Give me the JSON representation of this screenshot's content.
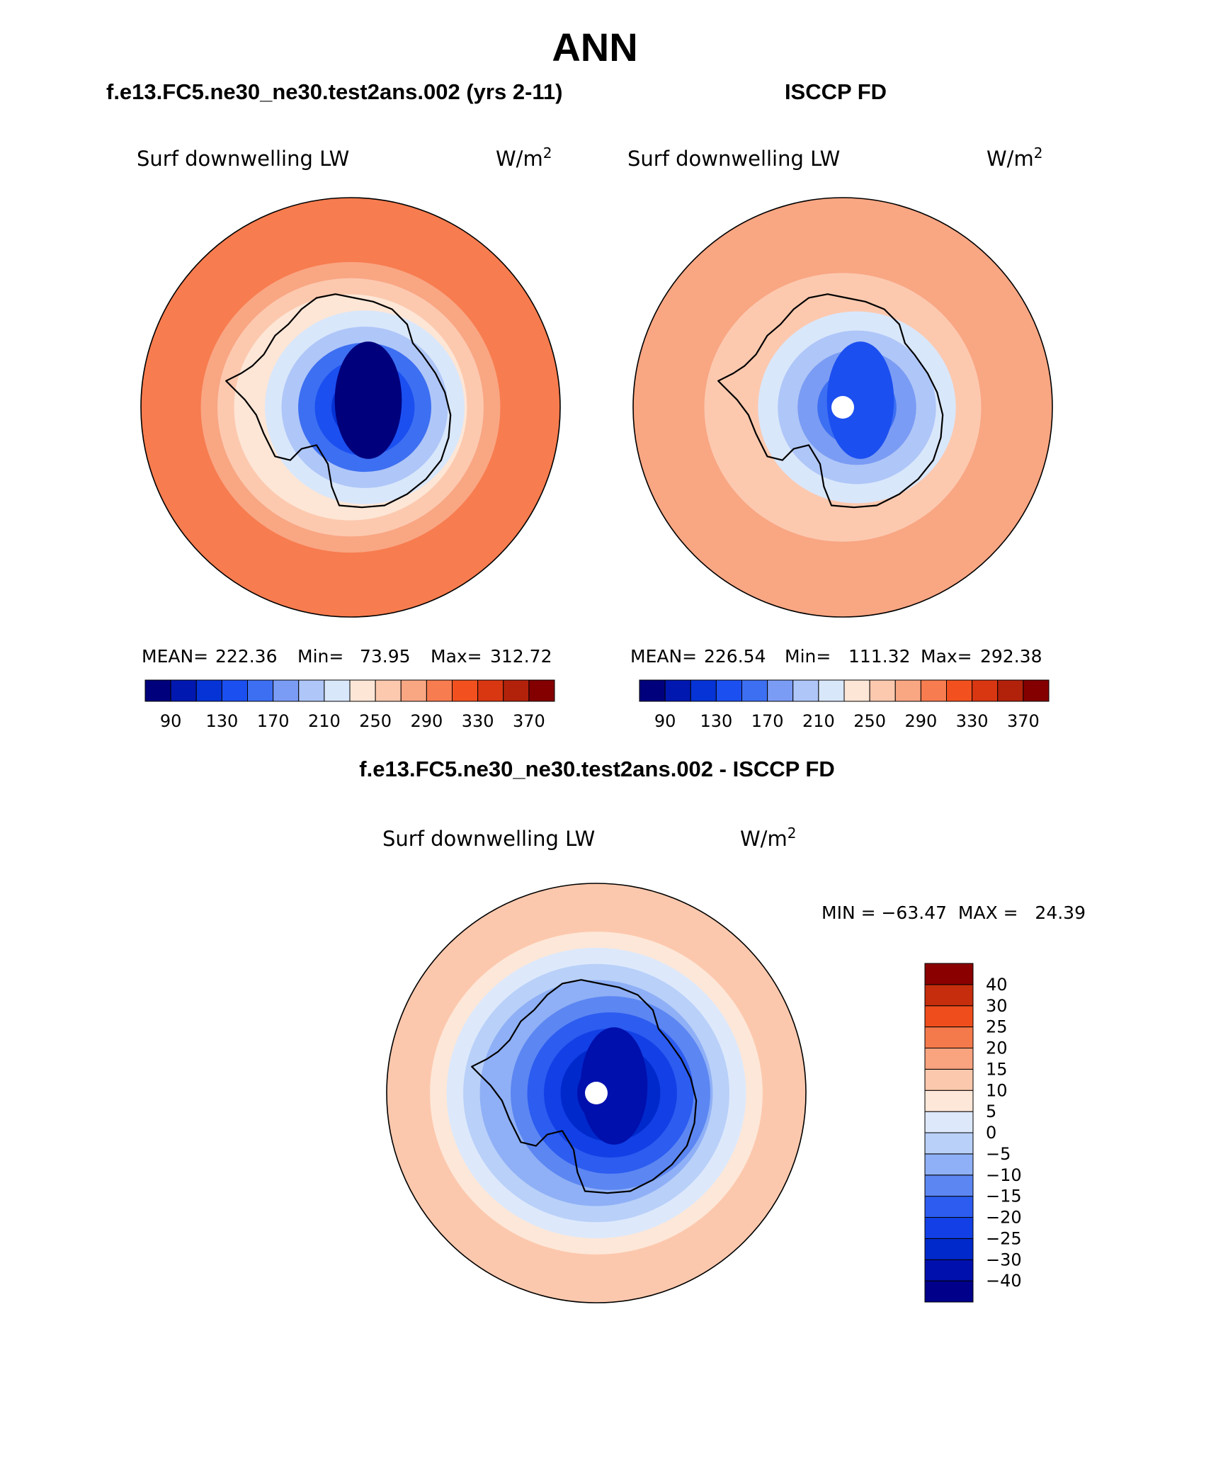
{
  "figure": {
    "title": "ANN",
    "panels": [
      {
        "id": "model",
        "title": "f.e13.FC5.ne30_ne30.test2ans.002 (yrs 2-11)",
        "variable": "Surf downwelling LW",
        "units": "W/m",
        "units_exp": "2",
        "stats": {
          "mean_label": "MEAN=",
          "mean": "222.36",
          "min_label": "Min=",
          "min": "73.95",
          "max_label": "Max=",
          "max": "312.72"
        },
        "center_value": 85,
        "ring_values": [
          85,
          110,
          140,
          160,
          190,
          215,
          240,
          265,
          275,
          290,
          300,
          305
        ],
        "pole_hole": false
      },
      {
        "id": "obs",
        "title": "ISCCP FD",
        "variable": "Surf downwelling LW",
        "units": "W/m",
        "units_exp": "2",
        "stats": {
          "mean_label": "MEAN=",
          "mean": "226.54",
          "min_label": "Min=",
          "min": "111.32",
          "max_label": "Max=",
          "max": "292.38"
        },
        "center_value": 130,
        "ring_values": [
          135,
          155,
          175,
          200,
          225,
          250,
          262,
          270,
          280,
          285
        ],
        "pole_hole": true
      },
      {
        "id": "diff",
        "title": "f.e13.FC5.ne30_ne30.test2ans.002 - ISCCP FD",
        "variable": "Surf downwelling LW",
        "units": "W/m",
        "units_exp": "2",
        "minmax": "MIN = −63.47  MAX =   24.39",
        "center_value": -35,
        "ring_values": [
          -42,
          -32,
          -27,
          -22,
          -17,
          -12,
          -7,
          -2,
          4,
          9,
          12,
          14
        ],
        "pole_hole": true
      }
    ],
    "abs_colorbar": {
      "levels": [
        90,
        110,
        130,
        150,
        170,
        190,
        210,
        230,
        250,
        270,
        290,
        310,
        330,
        350,
        370
      ],
      "tick_labels": [
        "90",
        "130",
        "170",
        "210",
        "250",
        "290",
        "330",
        "370"
      ],
      "colors": [
        "#00007d",
        "#0018b0",
        "#0533d6",
        "#1b4ff0",
        "#3d6ff2",
        "#7b9cf4",
        "#afc6f8",
        "#d9e7fb",
        "#fde6d6",
        "#fcc9af",
        "#f9a683",
        "#f77c4f",
        "#f2511f",
        "#d93712",
        "#b2220b",
        "#840000"
      ]
    },
    "diff_colorbar": {
      "levels": [
        -40,
        -30,
        -25,
        -20,
        -15,
        -10,
        -5,
        0,
        5,
        10,
        15,
        20,
        25,
        30,
        40
      ],
      "tick_labels": [
        "−40",
        "−30",
        "−25",
        "−20",
        "−15",
        "−10",
        "−5",
        "0",
        "5",
        "10",
        "15",
        "20",
        "25",
        "30",
        "40"
      ],
      "colors": [
        "#00008a",
        "#0010ad",
        "#0029cc",
        "#1240e6",
        "#2c5cf0",
        "#5c86f2",
        "#8fb0f6",
        "#b9d0f9",
        "#dde9fb",
        "#fde7d8",
        "#fcc8ad",
        "#f9a37f",
        "#f57a4b",
        "#ef4d1c",
        "#c52d0d",
        "#8a0000"
      ]
    }
  }
}
